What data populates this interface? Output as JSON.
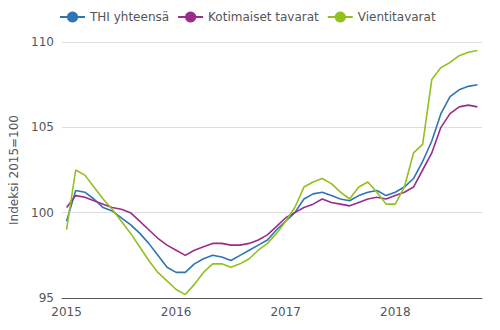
{
  "chart_data": {
    "type": "line",
    "ylabel": "Indeksi 2015=100",
    "categories": [
      "2015",
      null,
      null,
      null,
      null,
      null,
      null,
      null,
      null,
      null,
      null,
      null,
      "2016",
      null,
      null,
      null,
      null,
      null,
      null,
      null,
      null,
      null,
      null,
      null,
      "2017",
      null,
      null,
      null,
      null,
      null,
      null,
      null,
      null,
      null,
      null,
      null,
      "2018",
      null,
      null,
      null,
      null,
      null,
      null,
      null,
      null,
      null
    ],
    "ylim": [
      95,
      110
    ],
    "yticks": [
      95,
      100,
      105,
      110
    ],
    "grid": true,
    "legend": "upper left",
    "series": [
      {
        "name": "THI yhteensä",
        "color": "#2E75B6",
        "values": [
          99.5,
          101.3,
          101.2,
          100.8,
          100.3,
          100.1,
          99.7,
          99.3,
          98.8,
          98.2,
          97.5,
          96.8,
          96.5,
          96.5,
          97.0,
          97.3,
          97.5,
          97.4,
          97.2,
          97.5,
          97.8,
          98.1,
          98.4,
          99.0,
          99.5,
          100.0,
          100.8,
          101.1,
          101.2,
          101.0,
          100.8,
          100.7,
          101.0,
          101.2,
          101.3,
          101.0,
          101.2,
          101.5,
          102.0,
          103.0,
          104.2,
          105.8,
          106.8,
          107.2,
          107.4,
          107.5
        ]
      },
      {
        "name": "Kotimaiset tavarat",
        "color": "#9B2C8A",
        "values": [
          100.3,
          101.0,
          100.9,
          100.7,
          100.5,
          100.3,
          100.2,
          100.0,
          99.5,
          99.0,
          98.5,
          98.1,
          97.8,
          97.5,
          97.8,
          98.0,
          98.2,
          98.2,
          98.1,
          98.1,
          98.2,
          98.4,
          98.7,
          99.2,
          99.7,
          100.0,
          100.3,
          100.5,
          100.8,
          100.6,
          100.5,
          100.4,
          100.6,
          100.8,
          100.9,
          100.8,
          101.0,
          101.2,
          101.5,
          102.5,
          103.5,
          105.0,
          105.8,
          106.2,
          106.3,
          106.2
        ]
      },
      {
        "name": "Vientitavarat",
        "color": "#92C01F",
        "values": [
          99.0,
          102.5,
          102.2,
          101.5,
          100.8,
          100.2,
          99.5,
          98.8,
          98.0,
          97.2,
          96.5,
          96.0,
          95.5,
          95.2,
          95.8,
          96.5,
          97.0,
          97.0,
          96.8,
          97.0,
          97.3,
          97.8,
          98.2,
          98.8,
          99.5,
          100.3,
          101.5,
          101.8,
          102.0,
          101.7,
          101.2,
          100.8,
          101.5,
          101.8,
          101.2,
          100.5,
          100.5,
          101.5,
          103.5,
          104.0,
          107.8,
          108.5,
          108.8,
          109.2,
          109.4,
          109.5
        ]
      }
    ]
  }
}
